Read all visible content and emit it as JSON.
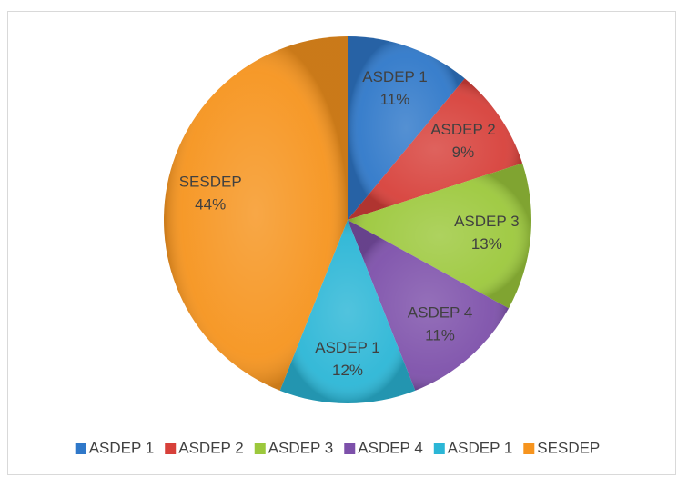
{
  "chart_data": {
    "type": "pie",
    "categories": [
      "ASDEP 1",
      "ASDEP 2",
      "ASDEP 3",
      "ASDEP 4",
      "ASDEP 1",
      "SESDEP"
    ],
    "values": [
      11,
      9,
      13,
      11,
      12,
      44
    ],
    "value_labels": [
      "11%",
      "9%",
      "13%",
      "11%",
      "12%",
      "44%"
    ],
    "colors": [
      "#2f78c9",
      "#d7403a",
      "#9cc83c",
      "#7d50aa",
      "#2bb6d6",
      "#f6941e"
    ],
    "legend": "bottom"
  }
}
